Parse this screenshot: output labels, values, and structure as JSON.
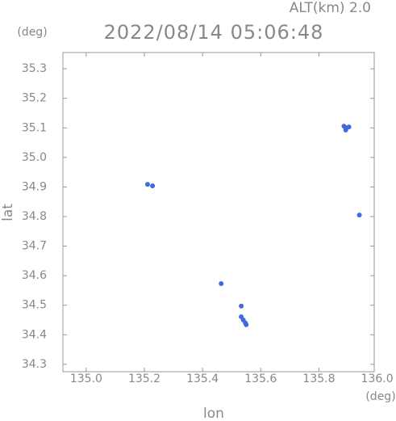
{
  "chart_data": {
    "type": "scatter",
    "title": "2022/08/14 05:06:48",
    "subtitle": "ALT(km) 2.0",
    "y_unit": "(deg)",
    "x_unit": "(deg)",
    "xlabel": "lon",
    "ylabel": "lat",
    "color": "#4169e1",
    "x": [
      135.886,
      135.894,
      135.903,
      135.892,
      135.939,
      135.211,
      135.228,
      135.464,
      135.533,
      135.533,
      135.54,
      135.547,
      135.55
    ],
    "y": [
      35.106,
      35.1,
      35.103,
      35.093,
      34.805,
      34.909,
      34.904,
      34.573,
      34.497,
      34.461,
      34.45,
      34.44,
      34.434
    ],
    "xlim": [
      134.92,
      135.99
    ],
    "ylim": [
      34.275,
      35.355
    ],
    "xticks": [
      {
        "value": 135,
        "label": "135.0"
      },
      135.2,
      135.4,
      135.6,
      135.8,
      {
        "value": 136,
        "label": "136.0"
      }
    ],
    "yticks": [
      34.3,
      34.4,
      34.5,
      34.6,
      34.7,
      34.8,
      34.9,
      {
        "value": 35,
        "label": "35.0"
      },
      35.1,
      35.2,
      35.3
    ]
  }
}
